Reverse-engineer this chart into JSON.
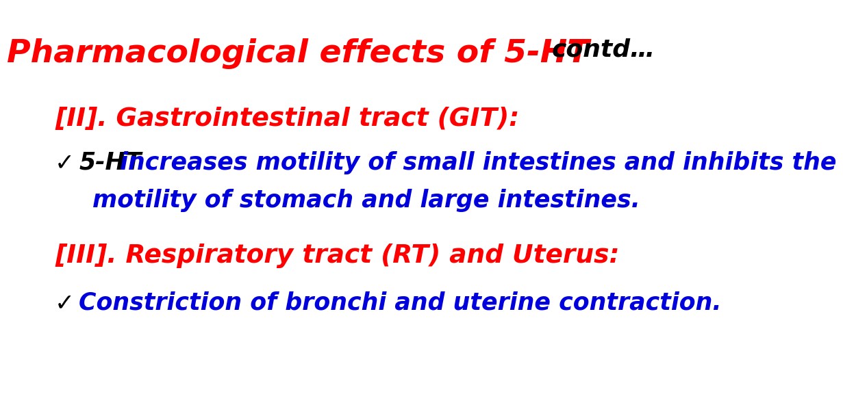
{
  "bg_color": "#ffffff",
  "title_red": "Pharmacological effects of 5-HT",
  "title_contd": "contd…",
  "title_red_color": "#ff0000",
  "title_contd_color": "#000000",
  "title_fontsize": 34,
  "contd_fontsize": 26,
  "section1_heading": "[II]. Gastrointestinal tract (GIT):",
  "section1_color": "#ff0000",
  "section1_fontsize": 27,
  "checkmark": "✓",
  "bullet1_black": "5-HT",
  "bullet1_blue1": " increases motility of small intestines and inhibits the",
  "bullet1_blue2": "motility of stomach and large intestines.",
  "bullet1_black_color": "#000000",
  "bullet1_blue_color": "#0000dd",
  "bullet1_fontsize": 25,
  "section2_heading": "[III]. Respiratory tract (RT) and Uterus:",
  "section2_color": "#ff0000",
  "section2_fontsize": 27,
  "bullet2_text": "Constriction of bronchi and uterine contraction.",
  "bullet2_color": "#0000dd",
  "bullet2_fontsize": 25,
  "font_family": "Comic Sans MS"
}
